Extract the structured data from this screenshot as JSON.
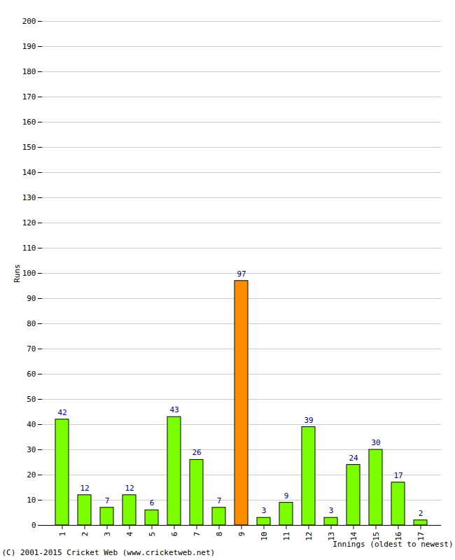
{
  "chart_data": {
    "type": "bar",
    "categories": [
      1,
      2,
      3,
      4,
      5,
      6,
      7,
      8,
      9,
      10,
      11,
      12,
      13,
      14,
      15,
      16,
      17
    ],
    "values": [
      42,
      12,
      7,
      12,
      6,
      43,
      26,
      7,
      97,
      3,
      9,
      39,
      3,
      24,
      30,
      17,
      2
    ],
    "colors": [
      "#7cfc00",
      "#7cfc00",
      "#7cfc00",
      "#7cfc00",
      "#7cfc00",
      "#7cfc00",
      "#7cfc00",
      "#7cfc00",
      "#ff8c00",
      "#7cfc00",
      "#7cfc00",
      "#7cfc00",
      "#7cfc00",
      "#7cfc00",
      "#7cfc00",
      "#7cfc00",
      "#7cfc00"
    ],
    "x_label": "Innings (oldest to newest)",
    "y_label": "Runs",
    "ylim": [
      0,
      200
    ],
    "yticks": [
      0,
      10,
      20,
      30,
      40,
      50,
      60,
      70,
      80,
      90,
      100,
      110,
      120,
      130,
      140,
      150,
      160,
      170,
      180,
      190,
      200
    ],
    "grid": true,
    "data_labels": true,
    "annotations": [
      "(C) 2001-2015 Cricket Web (www.cricketweb.net)"
    ]
  }
}
